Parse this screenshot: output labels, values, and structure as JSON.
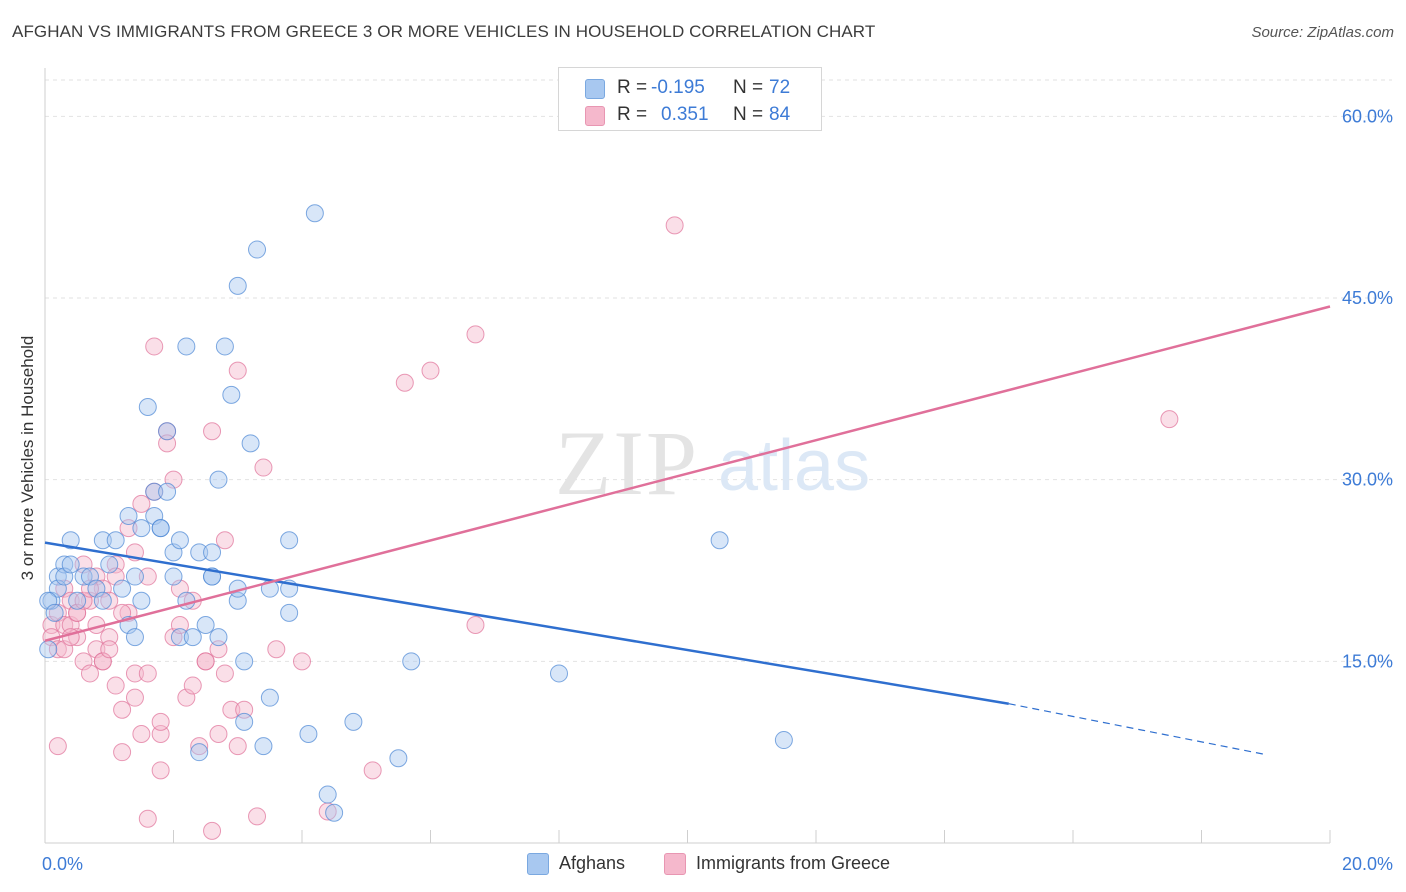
{
  "title": "AFGHAN VS IMMIGRANTS FROM GREECE 3 OR MORE VEHICLES IN HOUSEHOLD CORRELATION CHART",
  "source": "Source: ZipAtlas.com",
  "watermark": {
    "zip": "ZIP",
    "atlas": "atlas"
  },
  "legend": {
    "rows": [
      {
        "r_label": "R =",
        "r_value": "-0.195",
        "n_label": "N =",
        "n_value": "72",
        "color": "#a8c8f0"
      },
      {
        "r_label": "R =",
        "r_value": "0.351",
        "n_label": "N =",
        "n_value": "84",
        "color": "#f5b8cc"
      }
    ]
  },
  "chart_data": {
    "type": "scatter",
    "xlabel": "",
    "ylabel": "3 or more Vehicles in Household",
    "xlim": [
      0,
      20
    ],
    "ylim": [
      0,
      63
    ],
    "x_ticks": [
      0,
      20
    ],
    "x_tick_labels": [
      "0.0%",
      "20.0%"
    ],
    "y_ticks": [
      15,
      30,
      45,
      60
    ],
    "y_tick_labels": [
      "15.0%",
      "30.0%",
      "45.0%",
      "60.0%"
    ],
    "grid": true,
    "legend_position": "bottom",
    "series": [
      {
        "name": "Afghans",
        "color": "#4a86d4",
        "fill": "#a8c8f0",
        "trend": {
          "x0": 0,
          "y0": 24.8,
          "x1": 15.0,
          "y1": 11.5,
          "dashed_to_x": 19.0,
          "dashed_to_y": 7.3
        },
        "points": [
          [
            0.1,
            20
          ],
          [
            0.2,
            22
          ],
          [
            0.2,
            21
          ],
          [
            0.3,
            23
          ],
          [
            0.3,
            22
          ],
          [
            0.4,
            25
          ],
          [
            0.4,
            23
          ],
          [
            0.5,
            20
          ],
          [
            0.6,
            22
          ],
          [
            0.7,
            22
          ],
          [
            0.8,
            21
          ],
          [
            0.9,
            20
          ],
          [
            0.9,
            25
          ],
          [
            1.0,
            23
          ],
          [
            1.1,
            25
          ],
          [
            1.2,
            21
          ],
          [
            1.3,
            18
          ],
          [
            1.3,
            27
          ],
          [
            1.4,
            22
          ],
          [
            1.5,
            20
          ],
          [
            1.5,
            26
          ],
          [
            1.6,
            36
          ],
          [
            1.7,
            27
          ],
          [
            1.7,
            29
          ],
          [
            1.8,
            26
          ],
          [
            1.8,
            26
          ],
          [
            1.9,
            29
          ],
          [
            1.9,
            34
          ],
          [
            2.0,
            22
          ],
          [
            2.0,
            24
          ],
          [
            2.1,
            25
          ],
          [
            2.1,
            17
          ],
          [
            2.2,
            41
          ],
          [
            2.2,
            20
          ],
          [
            2.3,
            17
          ],
          [
            2.4,
            7.5
          ],
          [
            2.4,
            24
          ],
          [
            2.5,
            18
          ],
          [
            2.6,
            22
          ],
          [
            2.6,
            22
          ],
          [
            2.6,
            24
          ],
          [
            2.7,
            30
          ],
          [
            2.7,
            17
          ],
          [
            2.8,
            41
          ],
          [
            2.9,
            37
          ],
          [
            3.0,
            20
          ],
          [
            3.0,
            21
          ],
          [
            3.0,
            46
          ],
          [
            3.1,
            15
          ],
          [
            3.1,
            10
          ],
          [
            3.2,
            33
          ],
          [
            3.3,
            49
          ],
          [
            3.4,
            8
          ],
          [
            3.5,
            21
          ],
          [
            3.5,
            12
          ],
          [
            3.8,
            21
          ],
          [
            3.8,
            19
          ],
          [
            3.8,
            25
          ],
          [
            4.1,
            9
          ],
          [
            4.2,
            52
          ],
          [
            4.4,
            4
          ],
          [
            4.5,
            2.5
          ],
          [
            4.8,
            10
          ],
          [
            5.5,
            7
          ],
          [
            5.7,
            15
          ],
          [
            8.0,
            14
          ],
          [
            10.5,
            25
          ],
          [
            11.5,
            8.5
          ],
          [
            0.05,
            16
          ],
          [
            0.05,
            20
          ],
          [
            0.15,
            19
          ],
          [
            1.4,
            17
          ]
        ]
      },
      {
        "name": "Immigrants from Greece",
        "color": "#e07098",
        "fill": "#f5b8cc",
        "trend": {
          "x0": 0,
          "y0": 16.7,
          "x1": 20.0,
          "y1": 44.3
        },
        "points": [
          [
            0.1,
            18
          ],
          [
            0.1,
            17
          ],
          [
            0.2,
            19
          ],
          [
            0.2,
            16
          ],
          [
            0.3,
            21
          ],
          [
            0.3,
            18
          ],
          [
            0.4,
            20
          ],
          [
            0.4,
            18
          ],
          [
            0.5,
            19
          ],
          [
            0.5,
            17
          ],
          [
            0.6,
            23
          ],
          [
            0.6,
            15
          ],
          [
            0.7,
            20
          ],
          [
            0.7,
            14
          ],
          [
            0.8,
            22
          ],
          [
            0.8,
            16
          ],
          [
            0.9,
            21
          ],
          [
            0.9,
            15
          ],
          [
            1.0,
            17
          ],
          [
            1.0,
            20
          ],
          [
            1.1,
            23
          ],
          [
            1.1,
            13
          ],
          [
            1.2,
            11
          ],
          [
            1.2,
            7.5
          ],
          [
            1.3,
            19
          ],
          [
            1.3,
            26
          ],
          [
            1.4,
            24
          ],
          [
            1.4,
            14
          ],
          [
            1.5,
            28
          ],
          [
            1.5,
            9
          ],
          [
            1.6,
            22
          ],
          [
            1.6,
            2
          ],
          [
            1.7,
            41
          ],
          [
            1.7,
            29
          ],
          [
            1.8,
            9
          ],
          [
            1.8,
            6
          ],
          [
            1.9,
            34
          ],
          [
            1.9,
            33
          ],
          [
            2.0,
            30
          ],
          [
            2.0,
            17
          ],
          [
            2.1,
            18
          ],
          [
            2.1,
            21
          ],
          [
            2.2,
            12
          ],
          [
            2.3,
            20
          ],
          [
            2.3,
            13
          ],
          [
            2.4,
            8
          ],
          [
            2.5,
            15
          ],
          [
            2.5,
            15
          ],
          [
            2.6,
            34
          ],
          [
            2.6,
            1
          ],
          [
            2.7,
            9
          ],
          [
            2.7,
            16
          ],
          [
            2.8,
            25
          ],
          [
            2.8,
            14
          ],
          [
            2.9,
            11
          ],
          [
            3.0,
            39
          ],
          [
            3.0,
            8
          ],
          [
            3.1,
            11
          ],
          [
            3.3,
            2.2
          ],
          [
            3.4,
            31
          ],
          [
            3.6,
            16
          ],
          [
            4.0,
            15
          ],
          [
            4.4,
            2.6
          ],
          [
            5.1,
            6
          ],
          [
            5.6,
            38
          ],
          [
            6.0,
            39
          ],
          [
            6.7,
            42
          ],
          [
            6.7,
            18
          ],
          [
            9.8,
            51
          ],
          [
            17.5,
            35
          ],
          [
            0.2,
            8
          ],
          [
            0.3,
            16
          ],
          [
            0.4,
            17
          ],
          [
            0.5,
            19
          ],
          [
            0.6,
            20
          ],
          [
            0.7,
            21
          ],
          [
            0.8,
            18
          ],
          [
            0.9,
            15
          ],
          [
            1.0,
            16
          ],
          [
            1.1,
            22
          ],
          [
            1.2,
            19
          ],
          [
            1.4,
            12
          ],
          [
            1.6,
            14
          ],
          [
            1.8,
            10
          ]
        ]
      }
    ]
  }
}
